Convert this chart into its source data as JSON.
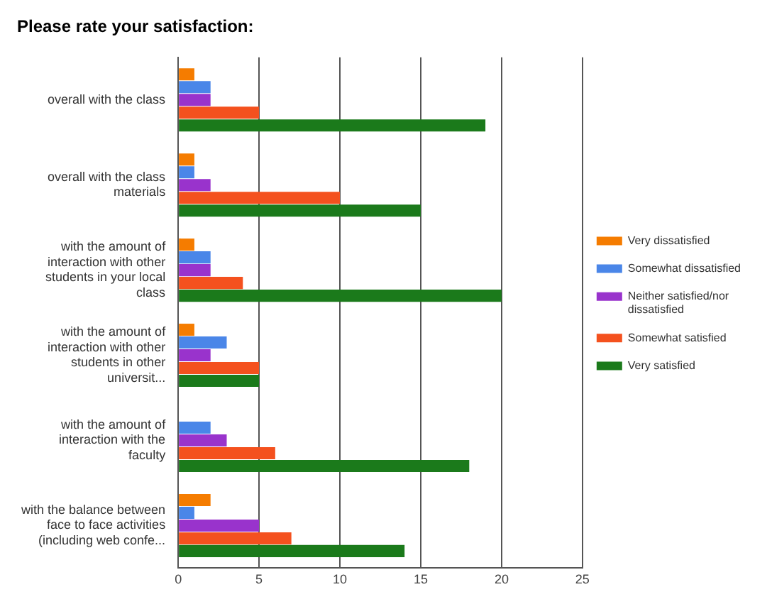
{
  "chart_data": {
    "type": "bar",
    "orientation": "horizontal",
    "title": "Please rate your satisfaction:",
    "categories": [
      "overall with the class",
      "overall with the class materials",
      "with the amount of interaction with other students in your local class",
      "with the amount of interaction with other students in other universit...",
      "with the amount of interaction with the faculty",
      "with the balance between face to face activities (including web confe..."
    ],
    "series": [
      {
        "name": "Very dissatisfied",
        "color": "#f57c00",
        "values": [
          1,
          1,
          1,
          1,
          0,
          2
        ]
      },
      {
        "name": "Somewhat dissatisfied",
        "color": "#4a86e8",
        "values": [
          2,
          1,
          2,
          3,
          2,
          1
        ]
      },
      {
        "name": "Neither satisfied/nor dissatisfied",
        "color": "#9933cc",
        "values": [
          2,
          2,
          2,
          2,
          3,
          5
        ]
      },
      {
        "name": "Somewhat satisfied",
        "color": "#f4511e",
        "values": [
          5,
          10,
          4,
          5,
          6,
          7
        ]
      },
      {
        "name": "Very satisfied",
        "color": "#1b7a1b",
        "values": [
          19,
          15,
          20,
          5,
          18,
          14
        ]
      }
    ],
    "xlim": [
      0,
      25
    ],
    "xticks": [
      0,
      5,
      10,
      15,
      20,
      25
    ],
    "grid": "x",
    "legend": "right"
  }
}
